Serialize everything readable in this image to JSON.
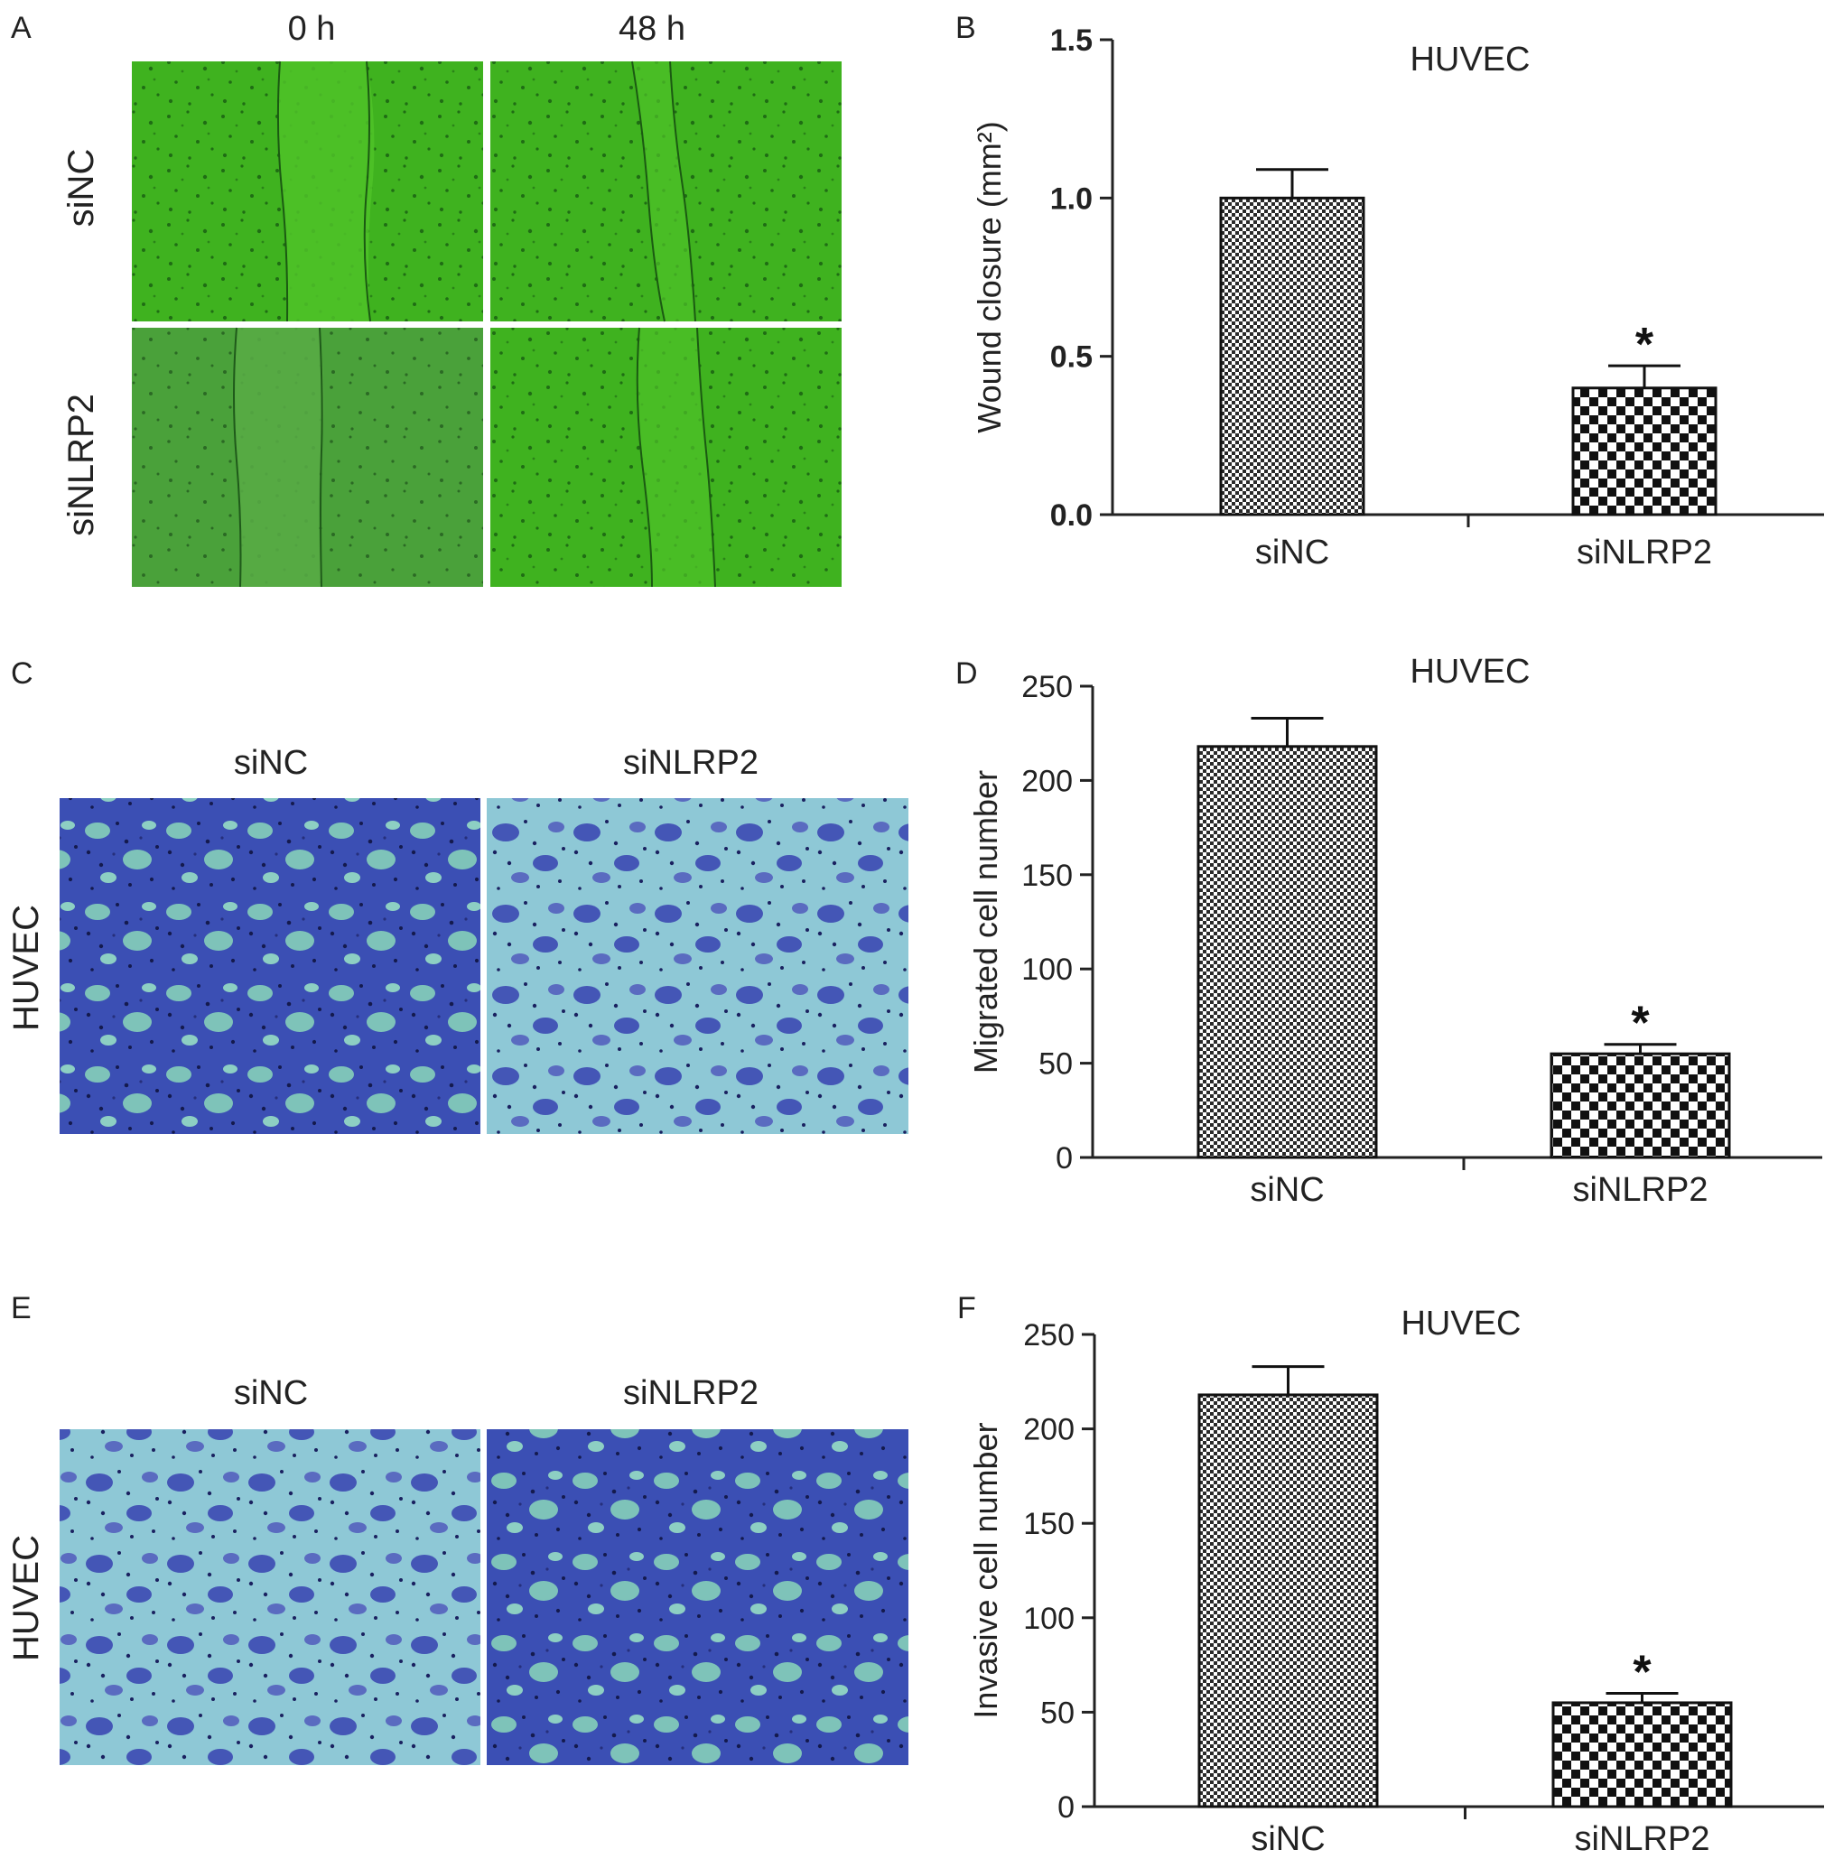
{
  "panels": {
    "A": {
      "letter": "A",
      "col_labels": [
        "0 h",
        "48 h"
      ],
      "row_labels": [
        "siNC",
        "siNLRP2"
      ],
      "image_color": "#3fb21f"
    },
    "C": {
      "letter": "C",
      "col_labels": [
        "siNC",
        "siNLRP2"
      ],
      "row_label": "HUVEC",
      "image_color": "#3a4fb8"
    },
    "E": {
      "letter": "E",
      "col_labels": [
        "siNC",
        "siNLRP2"
      ],
      "row_label": "HUVEC",
      "image_color": "#3a4fb8"
    }
  },
  "chart_data": [
    {
      "letter": "B",
      "type": "bar",
      "title": "HUVEC",
      "xlabel": "",
      "ylabel": "Wound closure (mm²)",
      "categories": [
        "siNC",
        "siNLRP2"
      ],
      "values": [
        1.0,
        0.4
      ],
      "errors": [
        0.09,
        0.07
      ],
      "ylim": [
        0,
        1.5
      ],
      "yticks": [
        "0.0",
        "0.5",
        "1.0",
        "1.5"
      ],
      "significance": [
        "",
        "*"
      ],
      "patterns": [
        "fine-checker",
        "coarse-checker"
      ],
      "tick_bold": true
    },
    {
      "letter": "D",
      "type": "bar",
      "title": "HUVEC",
      "xlabel": "",
      "ylabel": "Migrated cell number",
      "categories": [
        "siNC",
        "siNLRP2"
      ],
      "values": [
        218,
        55
      ],
      "errors": [
        15,
        5
      ],
      "ylim": [
        0,
        250
      ],
      "yticks": [
        "0",
        "50",
        "100",
        "150",
        "200",
        "250"
      ],
      "significance": [
        "",
        "*"
      ],
      "patterns": [
        "fine-checker",
        "coarse-checker"
      ],
      "tick_bold": false
    },
    {
      "letter": "F",
      "type": "bar",
      "title": "HUVEC",
      "xlabel": "",
      "ylabel": "Invasive cell number",
      "categories": [
        "siNC",
        "siNLRP2"
      ],
      "values": [
        218,
        55
      ],
      "errors": [
        15,
        5
      ],
      "ylim": [
        0,
        250
      ],
      "yticks": [
        "0",
        "50",
        "100",
        "150",
        "200",
        "250"
      ],
      "significance": [
        "",
        "*"
      ],
      "patterns": [
        "fine-checker",
        "coarse-checker"
      ],
      "tick_bold": false
    }
  ]
}
